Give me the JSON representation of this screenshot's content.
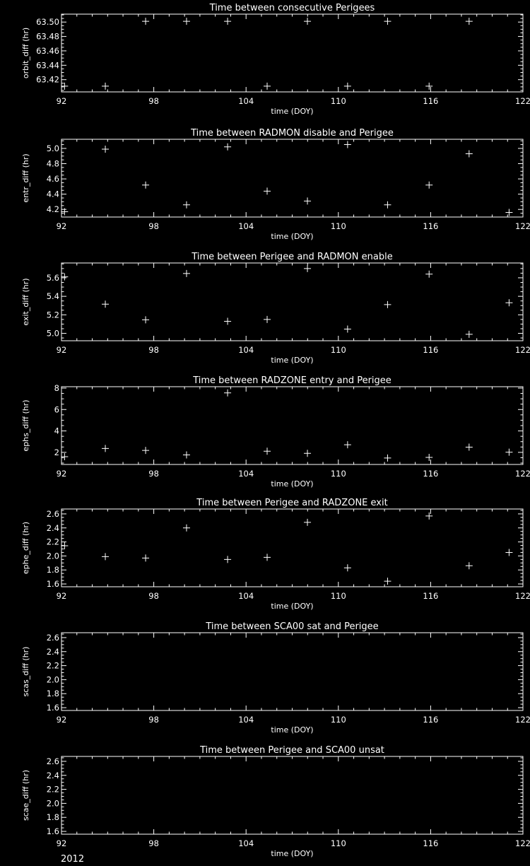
{
  "colors": {
    "background": "#000000",
    "foreground": "#ffffff"
  },
  "footer": {
    "year": "2012"
  },
  "chart_data": [
    {
      "type": "scatter",
      "marker": "plus",
      "title": "Time between consecutive Perigees",
      "xlabel": "time (DOY)",
      "ylabel": "orbit_diff (hr)",
      "xlim": [
        92,
        122
      ],
      "xticks": [
        92,
        98,
        104,
        110,
        116,
        122
      ],
      "ylim": [
        63.403,
        63.511
      ],
      "yticks": [
        63.42,
        63.44,
        63.46,
        63.48,
        63.5
      ],
      "ytick_decimals": 2,
      "x": [
        92.2,
        94.85,
        97.47,
        100.13,
        102.8,
        105.37,
        107.99,
        110.6,
        113.2,
        115.9,
        118.5
      ],
      "y": [
        63.411,
        63.411,
        63.501,
        63.501,
        63.501,
        63.411,
        63.501,
        63.411,
        63.501,
        63.411,
        63.501
      ]
    },
    {
      "type": "scatter",
      "marker": "plus",
      "title": "Time between RADMON disable and Perigee",
      "xlabel": "time (DOY)",
      "ylabel": "entr_diff (hr)",
      "xlim": [
        92,
        122
      ],
      "xticks": [
        92,
        98,
        104,
        110,
        116,
        122
      ],
      "ylim": [
        4.1,
        5.12
      ],
      "yticks": [
        4.2,
        4.4,
        4.6,
        4.8,
        5.0
      ],
      "ytick_decimals": 1,
      "x": [
        92.2,
        94.85,
        97.47,
        100.13,
        102.8,
        105.37,
        107.99,
        110.6,
        113.2,
        115.9,
        118.5,
        121.1
      ],
      "y": [
        4.17,
        4.99,
        4.52,
        4.26,
        5.02,
        4.44,
        4.31,
        5.05,
        4.26,
        4.52,
        4.93,
        4.16
      ]
    },
    {
      "type": "scatter",
      "marker": "plus",
      "title": "Time between Perigee and RADMON enable",
      "xlabel": "time (DOY)",
      "ylabel": "exit_diff (hr)",
      "xlim": [
        92,
        122
      ],
      "xticks": [
        92,
        98,
        104,
        110,
        116,
        122
      ],
      "ylim": [
        4.92,
        5.76
      ],
      "yticks": [
        5.0,
        5.2,
        5.4,
        5.6
      ],
      "ytick_decimals": 1,
      "x": [
        92.2,
        94.85,
        97.47,
        100.13,
        102.8,
        105.37,
        107.99,
        110.6,
        113.2,
        115.9,
        118.5,
        121.1
      ],
      "y": [
        5.61,
        5.315,
        5.146,
        5.646,
        5.13,
        5.15,
        5.7,
        5.046,
        5.31,
        5.64,
        4.99,
        5.33
      ]
    },
    {
      "type": "scatter",
      "marker": "plus",
      "title": "Time between RADZONE entry and Perigee",
      "xlabel": "time (DOY)",
      "ylabel": "ephs_diff (hr)",
      "xlim": [
        92,
        122
      ],
      "xticks": [
        92,
        98,
        104,
        110,
        116,
        122
      ],
      "ylim": [
        0.87,
        8.13
      ],
      "yticks": [
        2,
        4,
        6,
        8
      ],
      "ytick_decimals": 0,
      "x": [
        92.2,
        94.85,
        97.47,
        100.13,
        102.8,
        105.37,
        107.99,
        110.6,
        113.2,
        115.9,
        118.5,
        121.1
      ],
      "y": [
        1.6,
        2.36,
        2.18,
        1.76,
        7.55,
        2.11,
        1.91,
        2.71,
        1.47,
        1.53,
        2.49,
        2.02
      ]
    },
    {
      "type": "scatter",
      "marker": "plus",
      "title": "Time between Perigee and RADZONE exit",
      "xlabel": "time (DOY)",
      "ylabel": "ephe_diff (hr)",
      "xlim": [
        92,
        122
      ],
      "xticks": [
        92,
        98,
        104,
        110,
        116,
        122
      ],
      "ylim": [
        1.56,
        2.67
      ],
      "yticks": [
        1.6,
        1.8,
        2.0,
        2.2,
        2.4,
        2.6
      ],
      "ytick_decimals": 1,
      "x": [
        92.2,
        94.85,
        97.47,
        100.13,
        102.8,
        105.37,
        107.99,
        110.6,
        113.2,
        115.9,
        118.5,
        121.1
      ],
      "y": [
        2.145,
        1.99,
        1.97,
        2.4,
        1.95,
        1.98,
        2.48,
        1.83,
        1.64,
        2.57,
        1.86,
        2.05
      ]
    },
    {
      "type": "scatter",
      "marker": "plus",
      "title": "Time between SCA00 sat and Perigee",
      "xlabel": "time (DOY)",
      "ylabel": "scas_diff (hr)",
      "xlim": [
        92,
        122
      ],
      "xticks": [
        92,
        98,
        104,
        110,
        116,
        122
      ],
      "ylim": [
        1.56,
        2.67
      ],
      "yticks": [
        1.6,
        1.8,
        2.0,
        2.2,
        2.4,
        2.6
      ],
      "ytick_decimals": 1,
      "x": [],
      "y": []
    },
    {
      "type": "scatter",
      "marker": "plus",
      "title": "Time between Perigee and SCA00 unsat",
      "xlabel": "time (DOY)",
      "ylabel": "scae_diff (hr)",
      "xlim": [
        92,
        122
      ],
      "xticks": [
        92,
        98,
        104,
        110,
        116,
        122
      ],
      "ylim": [
        1.56,
        2.67
      ],
      "yticks": [
        1.6,
        1.8,
        2.0,
        2.2,
        2.4,
        2.6
      ],
      "ytick_decimals": 1,
      "x": [],
      "y": []
    }
  ]
}
